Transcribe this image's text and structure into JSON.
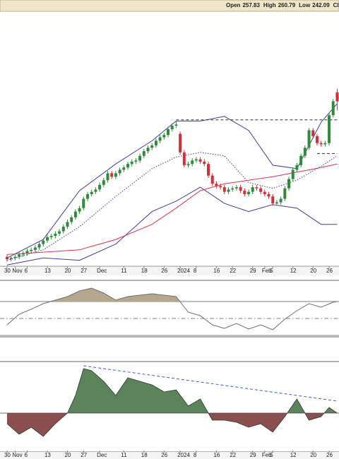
{
  "header": {
    "labels": [
      "Open",
      "High",
      "Low",
      "Clos"
    ]
  },
  "chart_data": [
    {
      "type": "candlestick",
      "xlim": [
        -1.75,
        82.45
      ],
      "ylim": [
        100,
        330
      ],
      "color_up": "#2e8b3a",
      "color_down": "#d0303a",
      "xticks": [
        {
          "value": 0,
          "label": "30"
        },
        {
          "value": 2,
          "label": "Nov"
        },
        {
          "value": 5,
          "label": "6"
        },
        {
          "value": 10,
          "label": "13"
        },
        {
          "value": 15,
          "label": "20"
        },
        {
          "value": 19,
          "label": "27"
        },
        {
          "value": 23,
          "label": "Dec"
        },
        {
          "value": 29,
          "label": "11"
        },
        {
          "value": 34,
          "label": "18"
        },
        {
          "value": 39,
          "label": "26"
        },
        {
          "value": 43,
          "label": "2024"
        },
        {
          "value": 47,
          "label": "8"
        },
        {
          "value": 52,
          "label": "16"
        },
        {
          "value": 56,
          "label": "22"
        },
        {
          "value": 61,
          "label": "29"
        },
        {
          "value": 64,
          "label": "Feb"
        },
        {
          "value": 66,
          "label": "5"
        },
        {
          "value": 71,
          "label": "12"
        },
        {
          "value": 76,
          "label": "20"
        },
        {
          "value": 80,
          "label": "26"
        }
      ],
      "open": [
        116,
        114,
        115,
        116,
        118,
        119,
        121,
        122,
        124,
        127,
        130,
        133,
        134,
        136,
        138,
        142,
        146,
        150,
        155,
        158,
        166,
        170,
        172,
        174,
        178,
        182,
        188,
        185,
        188,
        191,
        193,
        196,
        198,
        199,
        203,
        207,
        210,
        212,
        216,
        219,
        221,
        226,
        229,
        222,
        206,
        195,
        196,
        199,
        200,
        198,
        196,
        186,
        179,
        177,
        176,
        172,
        174,
        175,
        176,
        173,
        170,
        172,
        176,
        175,
        172,
        170,
        168,
        162,
        163,
        166,
        175,
        183,
        191,
        195,
        203,
        210,
        225,
        220,
        214,
        213,
        214,
        238,
        257.83
      ],
      "high": [
        118,
        117,
        118,
        120,
        121,
        123,
        124,
        126,
        129,
        132,
        135,
        136,
        138,
        140,
        144,
        148,
        152,
        157,
        160,
        168,
        172,
        174,
        176,
        180,
        184,
        190,
        190,
        190,
        193,
        195,
        198,
        200,
        201,
        205,
        209,
        212,
        214,
        218,
        221,
        223,
        228,
        231,
        233,
        224,
        208,
        198,
        201,
        202,
        202,
        200,
        198,
        188,
        181,
        179,
        178,
        176,
        177,
        178,
        178,
        175,
        174,
        178,
        178,
        177,
        174,
        172,
        170,
        165,
        168,
        177,
        185,
        193,
        197,
        205,
        212,
        227,
        227,
        222,
        216,
        216,
        240,
        252,
        260.79
      ],
      "low": [
        112,
        112,
        113,
        114,
        116,
        117,
        119,
        120,
        122,
        125,
        128,
        131,
        132,
        134,
        136,
        140,
        144,
        148,
        153,
        156,
        164,
        168,
        170,
        172,
        176,
        180,
        183,
        183,
        186,
        189,
        191,
        194,
        196,
        197,
        201,
        205,
        208,
        210,
        214,
        217,
        219,
        224,
        227,
        204,
        193,
        193,
        194,
        197,
        196,
        194,
        184,
        177,
        175,
        174,
        170,
        170,
        172,
        173,
        171,
        168,
        168,
        170,
        173,
        170,
        168,
        166,
        160,
        160,
        161,
        164,
        173,
        181,
        189,
        193,
        201,
        208,
        218,
        212,
        211,
        211,
        212,
        236,
        242.09
      ],
      "close": [
        114,
        115,
        116,
        118,
        119,
        121,
        122,
        124,
        127,
        130,
        133,
        134,
        136,
        138,
        142,
        146,
        150,
        155,
        158,
        166,
        170,
        172,
        174,
        178,
        182,
        188,
        185,
        188,
        191,
        193,
        196,
        198,
        199,
        203,
        207,
        210,
        212,
        216,
        219,
        221,
        226,
        229,
        230,
        206,
        195,
        196,
        199,
        200,
        198,
        196,
        186,
        179,
        177,
        176,
        172,
        174,
        175,
        176,
        173,
        170,
        172,
        176,
        175,
        172,
        170,
        168,
        162,
        163,
        166,
        175,
        183,
        191,
        195,
        203,
        210,
        225,
        220,
        214,
        213,
        214,
        238,
        250,
        250
      ],
      "series": [
        {
          "color": "#3c3ca8",
          "style": "solid",
          "x": [
            0,
            9,
            18,
            27,
            36,
            42,
            48,
            54,
            60,
            66,
            72,
            78,
            82
          ],
          "values": [
            115,
            131,
            173,
            196,
            216,
            233,
            233,
            237,
            225,
            195,
            192,
            232,
            248
          ]
        },
        {
          "color": "#3c3ca8",
          "style": "dotted",
          "x": [
            0,
            9,
            18,
            27,
            36,
            42,
            48,
            54,
            60,
            66,
            72,
            78,
            82
          ],
          "values": [
            113,
            122,
            142,
            168,
            192,
            202,
            206,
            203,
            180,
            175,
            182,
            194,
            203
          ]
        },
        {
          "color": "#3c3ca8",
          "style": "solid",
          "x": [
            0,
            9,
            18,
            27,
            36,
            42,
            48,
            54,
            60,
            66,
            72,
            78,
            82
          ],
          "values": [
            109,
            115,
            113,
            127,
            155,
            164,
            176,
            162,
            155,
            161,
            158,
            144,
            144
          ]
        },
        {
          "color": "#e0304a",
          "style": "solid",
          "x": [
            0,
            9,
            18,
            27,
            36,
            42,
            48,
            54,
            60,
            66,
            72,
            78,
            82
          ],
          "values": [
            118,
            120,
            122,
            131,
            144,
            158,
            173,
            179,
            182,
            185,
            189,
            193,
            196
          ]
        }
      ],
      "levels": [
        {
          "value": 234,
          "x": [
            42,
            82
          ]
        },
        {
          "value": 205,
          "x": [
            77,
            82
          ]
        }
      ]
    },
    {
      "type": "line",
      "xlim": [
        -1.75,
        82.45
      ],
      "ylim": [
        30,
        92.5
      ],
      "color": "#6e6e6e",
      "fill_color": "#b5a78e",
      "fill_above": 70,
      "hlines": [
        70,
        50,
        30
      ],
      "hline_styles": [
        "solid",
        "dashdot",
        "solid"
      ],
      "x": [
        0,
        3,
        6,
        9,
        12,
        15,
        18,
        21,
        24,
        27,
        30,
        33,
        36,
        39,
        42,
        45,
        48,
        51,
        54,
        57,
        60,
        63,
        66,
        69,
        72,
        75,
        78,
        81,
        82
      ],
      "values": [
        42.5,
        55,
        61,
        67.5,
        71.7,
        75.8,
        82.5,
        85.8,
        80,
        71.7,
        75.8,
        77.5,
        79.2,
        77.5,
        75.8,
        57.5,
        53.3,
        42.5,
        38.3,
        44.2,
        37.5,
        42.5,
        36.7,
        49.2,
        59.2,
        67.5,
        63.3,
        69.2,
        70
      ]
    },
    {
      "type": "area",
      "xlim": [
        -1.75,
        82.45
      ],
      "ylim": [
        -6,
        7
      ],
      "color_up": "#5b845b",
      "color_down": "#8c4f4f",
      "x": [
        0,
        3,
        6,
        9,
        12,
        15,
        17,
        19,
        21,
        24,
        27,
        30,
        33,
        36,
        39,
        42,
        45,
        48,
        51,
        54,
        57,
        60,
        63,
        66,
        69,
        72,
        75,
        78,
        80,
        82
      ],
      "values": [
        -1.5,
        -3,
        -2,
        -3.3,
        -1.5,
        0,
        2.5,
        6.3,
        6,
        4.5,
        2.5,
        5,
        4.5,
        4,
        3,
        3.3,
        1,
        2,
        -1,
        -1,
        -1.3,
        -2,
        -1.5,
        -2.7,
        -0.5,
        2,
        -1,
        -0.5,
        0.8,
        0
      ],
      "trendline": {
        "color": "#3a5ad8",
        "x": [
          19,
          82
        ],
        "values": [
          6.7,
          1.7
        ]
      }
    }
  ]
}
